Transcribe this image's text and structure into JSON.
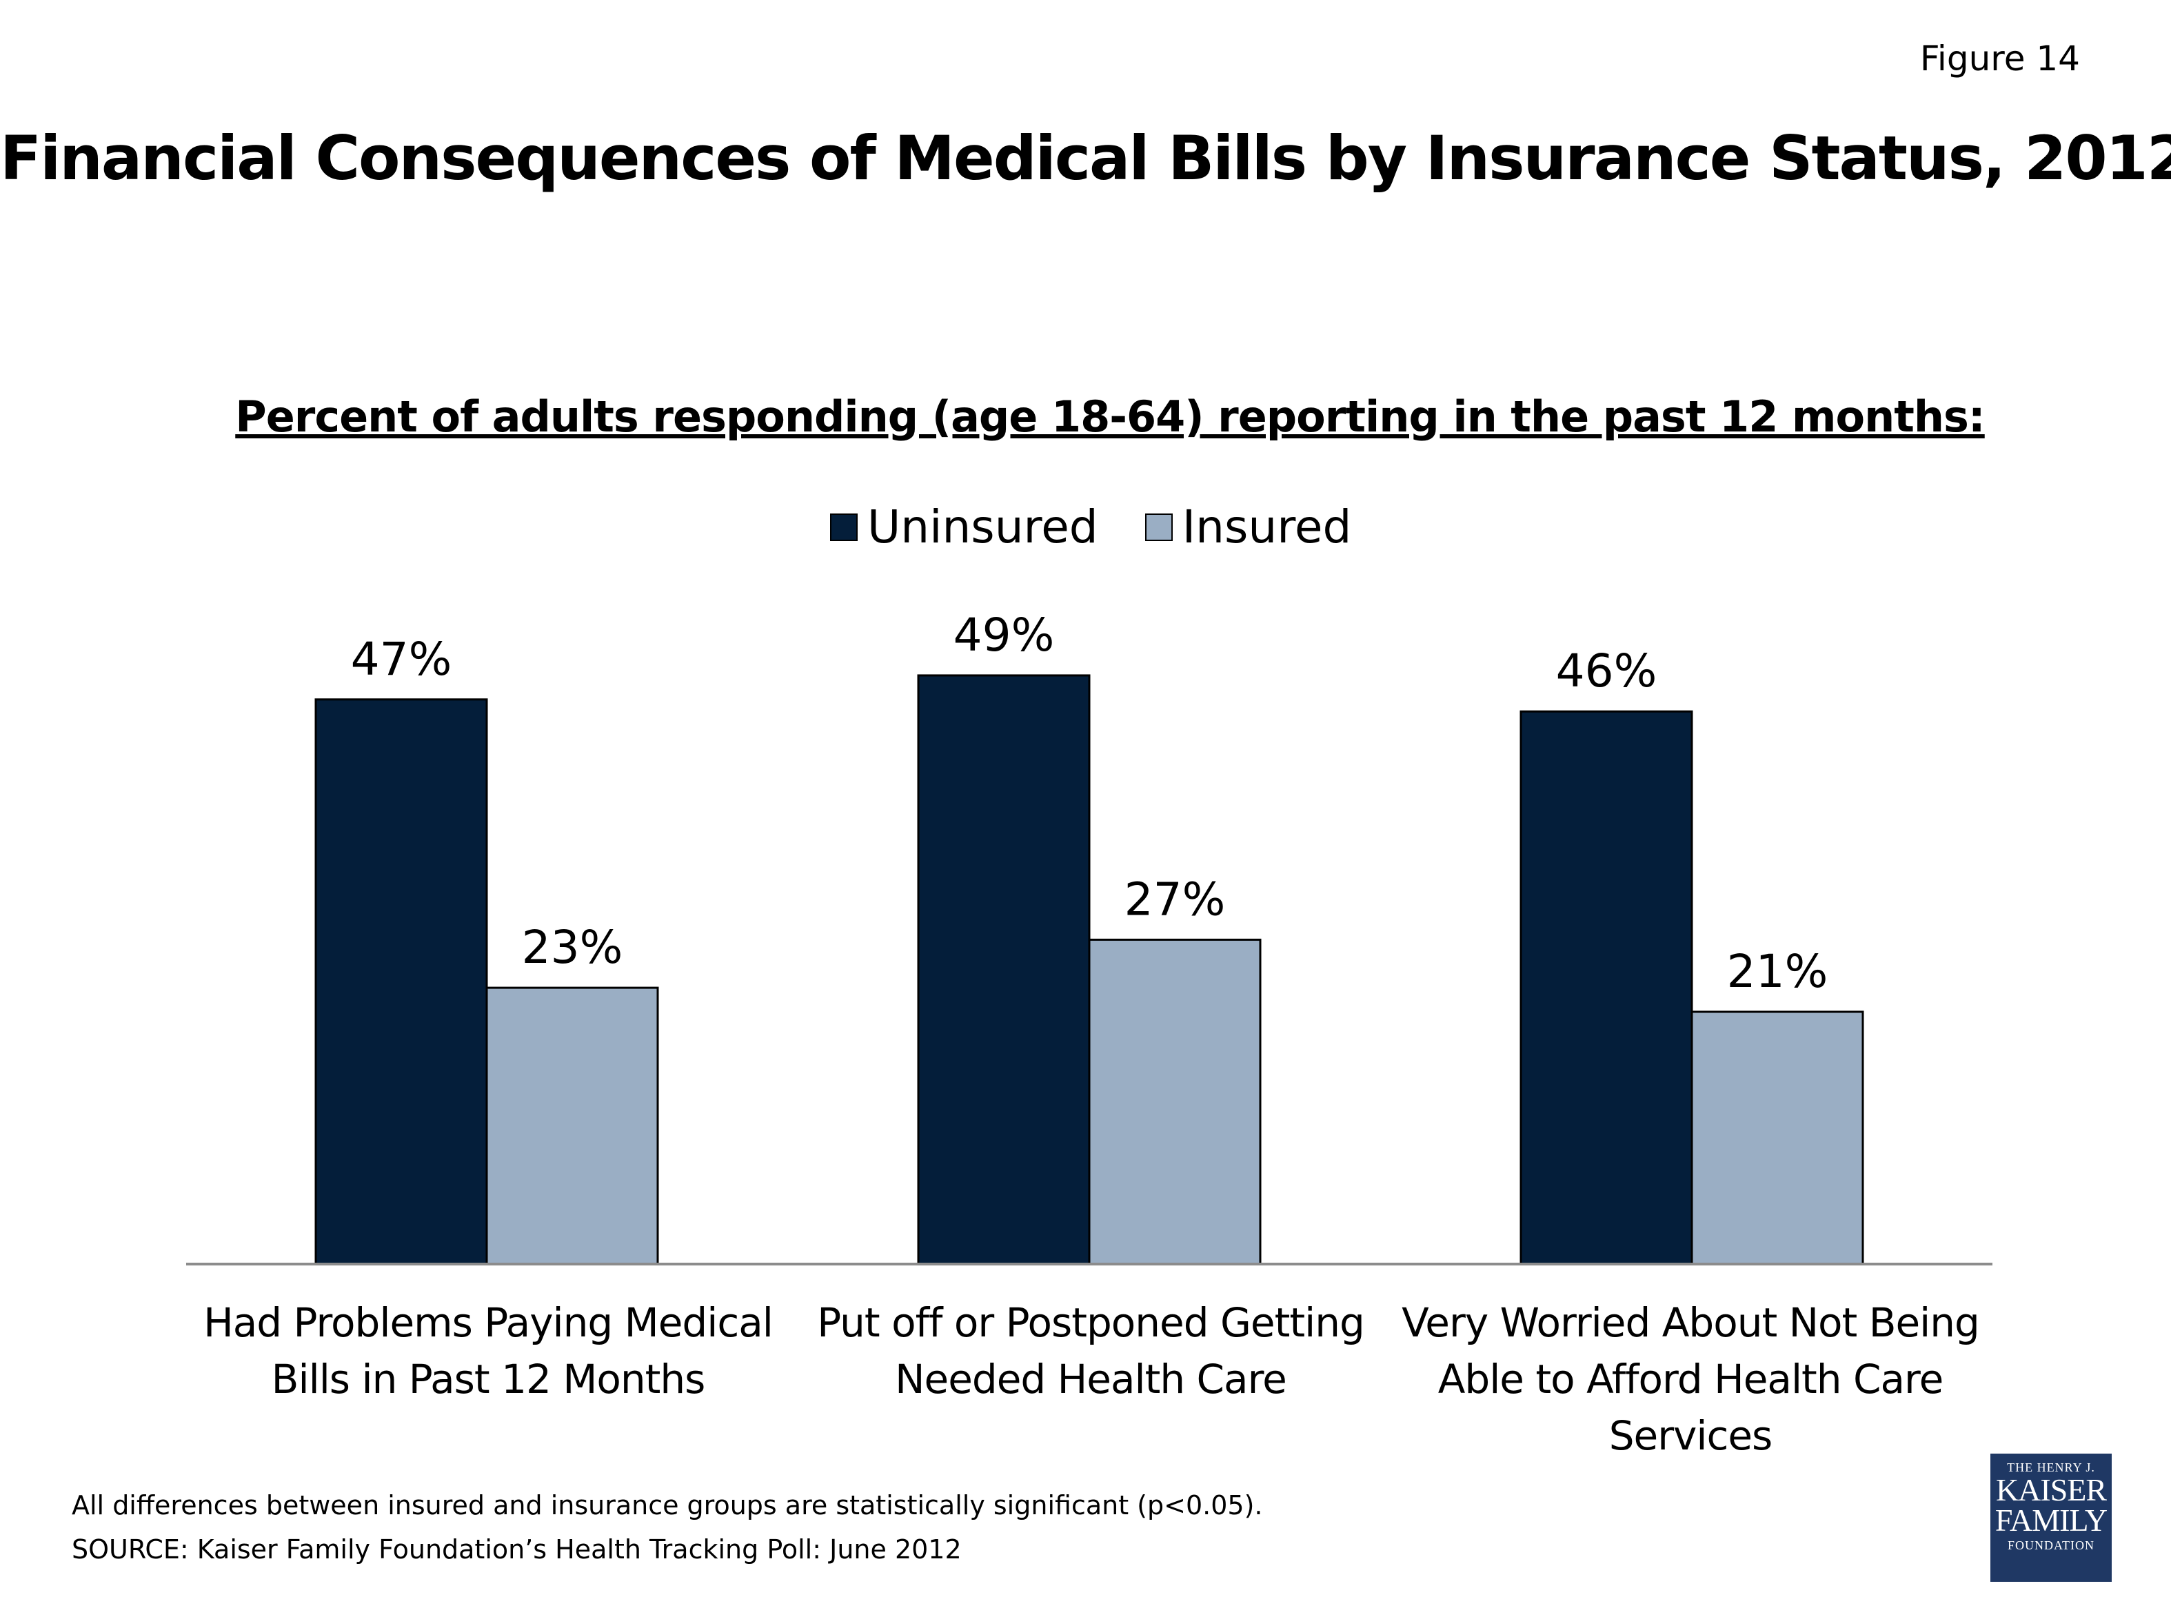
{
  "figure_label": "Figure 14",
  "chart_data": {
    "type": "bar",
    "title": "Financial Consequences of Medical Bills by Insurance Status, 2012",
    "subtitle": "Percent of adults responding (age 18-64) reporting in the past 12 months:",
    "categories": [
      "Had Problems Paying Medical Bills in Past 12 Months",
      "Put off or Postponed Getting Needed Health Care",
      "Very Worried About Not Being Able to Afford Health Care Services"
    ],
    "series": [
      {
        "name": "Uninsured",
        "values": [
          47,
          49,
          46
        ],
        "labels": [
          "47%",
          "49%",
          "46%"
        ],
        "color": "#041e3a"
      },
      {
        "name": "Insured",
        "values": [
          23,
          27,
          21
        ],
        "labels": [
          "23%",
          "27%",
          "21%"
        ],
        "color": "#9aaec4"
      }
    ],
    "legend_position": "top-center",
    "grid": false,
    "ylim": [
      0,
      100
    ]
  },
  "notes": {
    "significance": "All differences between insured and insurance groups are statistically significant (p<0.05).",
    "source": "SOURCE: Kaiser Family Foundation’s Health Tracking Poll: June 2012"
  },
  "logo": {
    "line1": "THE HENRY J.",
    "line2": "KAISER",
    "line3": "FAMILY",
    "line4": "FOUNDATION",
    "color": "#1f3864"
  }
}
